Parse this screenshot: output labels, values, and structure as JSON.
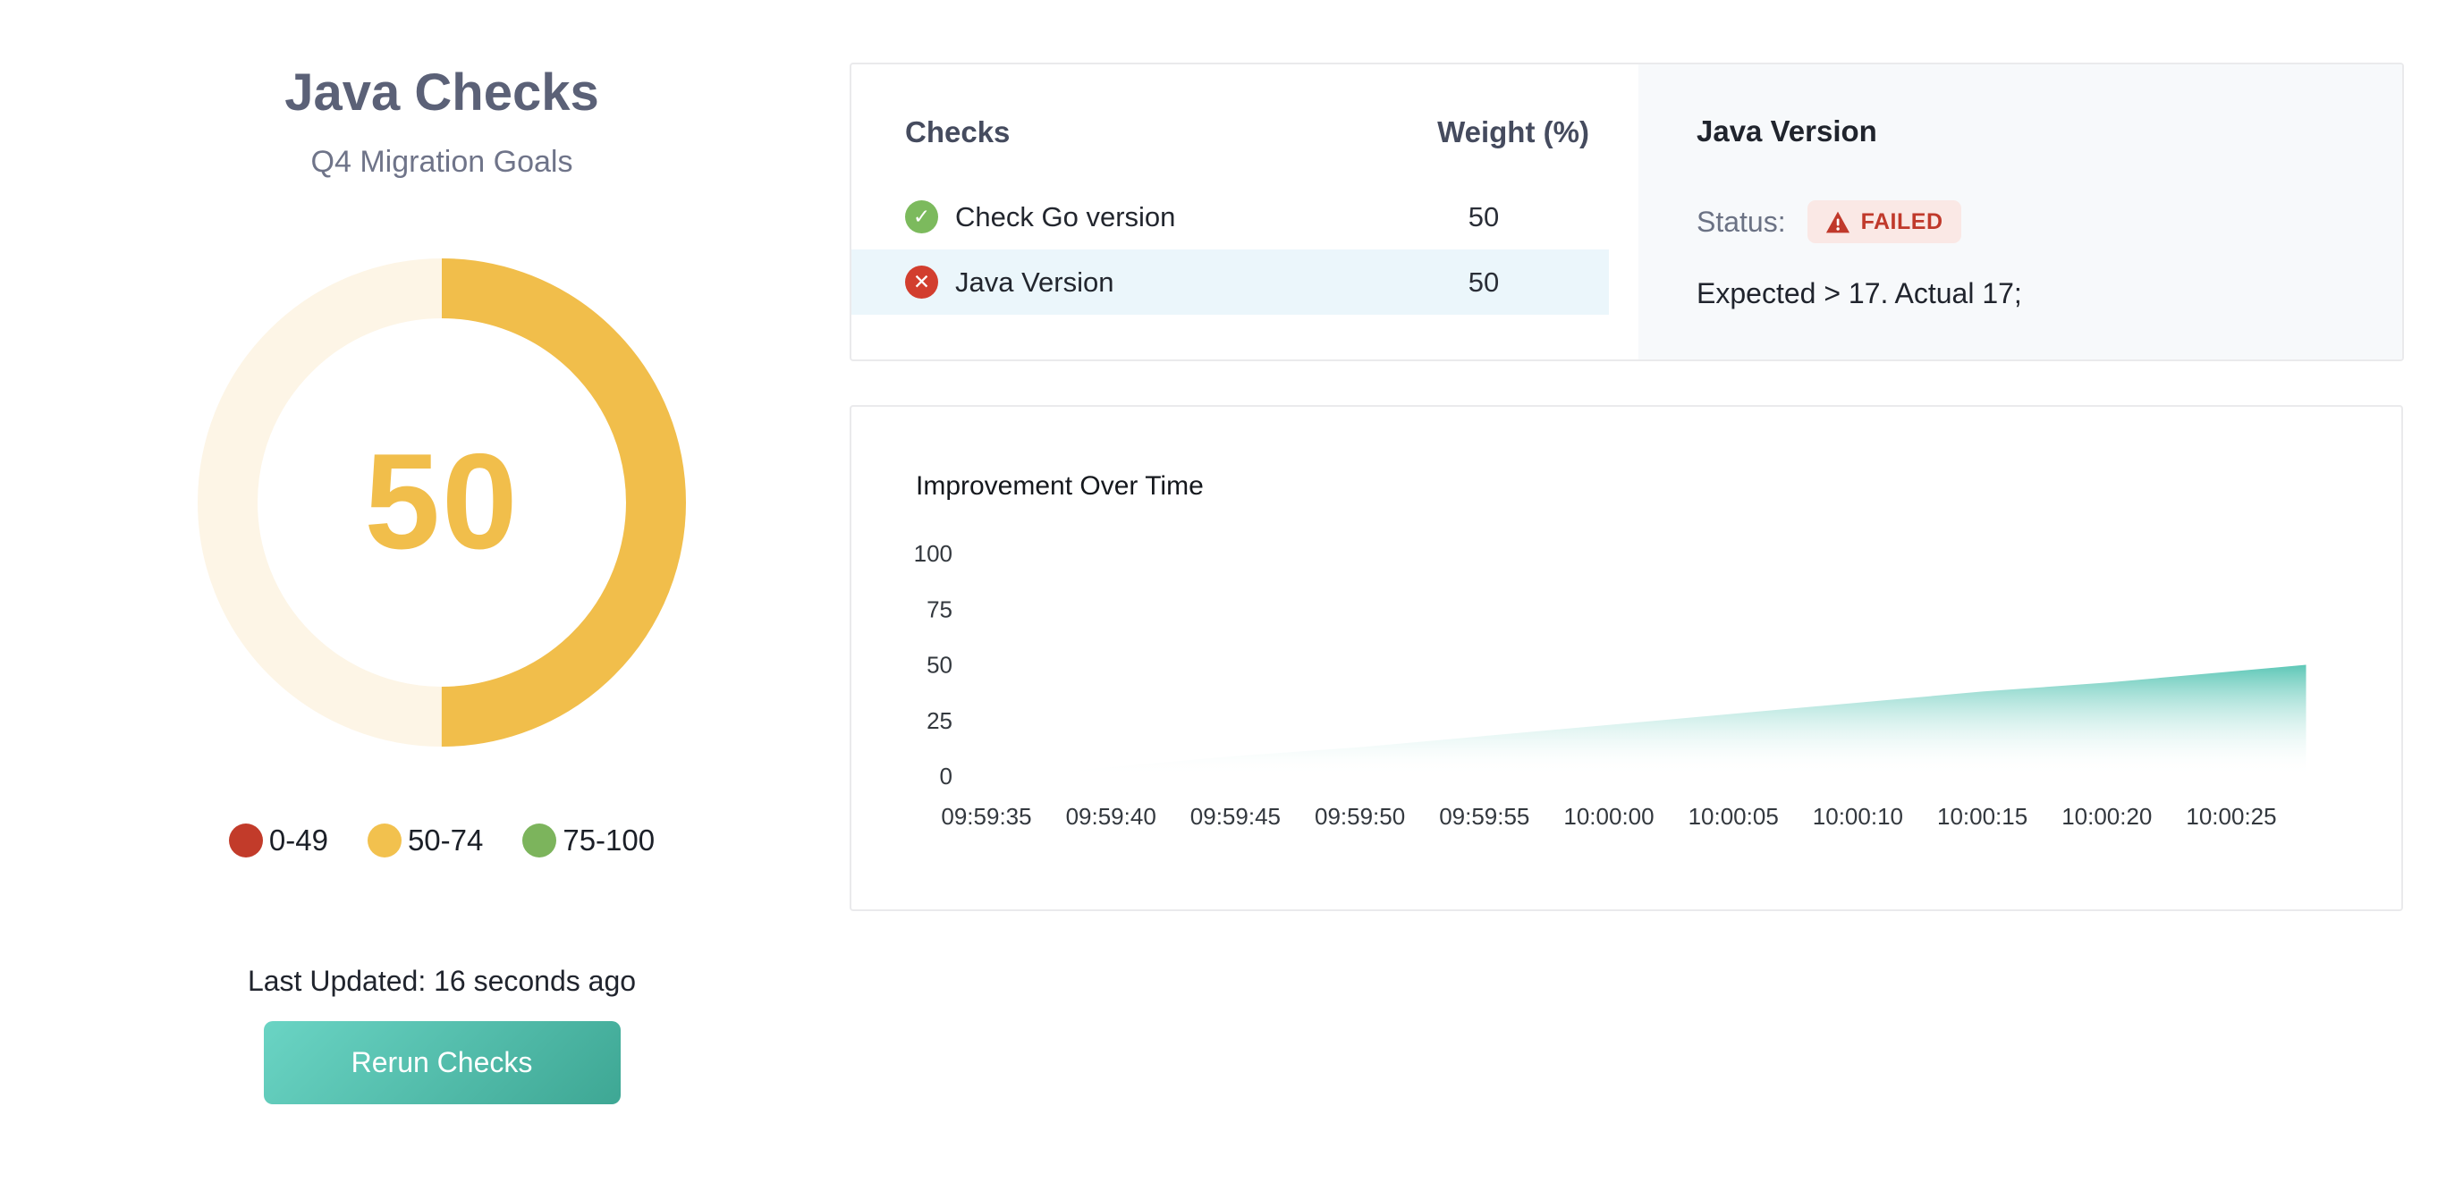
{
  "page": {
    "title": "Java Checks",
    "subtitle": "Q4 Migration Goals"
  },
  "gauge": {
    "value": 50,
    "max": 100,
    "value_color": "#F1BE4B",
    "track_color": "#FDF5E6",
    "ranges": [
      {
        "label": "0-49",
        "color": "#C23B2A"
      },
      {
        "label": "50-74",
        "color": "#F2C14E"
      },
      {
        "label": "75-100",
        "color": "#7CB45C"
      }
    ]
  },
  "last_updated": "Last Updated: 16 seconds ago",
  "rerun_button": {
    "label": "Rerun Checks"
  },
  "checks_panel": {
    "header": {
      "checks": "Checks",
      "weight": "Weight (%)"
    },
    "rows": [
      {
        "name": "Check Go version",
        "weight": "50",
        "status": "passed",
        "selected": false
      },
      {
        "name": "Java Version",
        "weight": "50",
        "status": "failed",
        "selected": true
      }
    ]
  },
  "detail_panel": {
    "title": "Java Version",
    "status_label": "Status:",
    "status_badge": "FAILED",
    "badge_color": "#C0392B",
    "badge_bg": "#FAE8E5",
    "message": "Expected > 17. Actual 17;"
  },
  "chart_data": {
    "type": "area",
    "title": "Improvement Over Time",
    "xlabel": "",
    "ylabel": "",
    "ylim": [
      0,
      100
    ],
    "y_ticks": [
      0,
      25,
      50,
      75,
      100
    ],
    "x_ticks": [
      "09:59:35",
      "09:59:40",
      "09:59:45",
      "09:59:50",
      "09:59:55",
      "10:00:00",
      "10:00:05",
      "10:00:10",
      "10:00:15",
      "10:00:20",
      "10:00:25"
    ],
    "points": [
      {
        "x": "09:59:36",
        "y": 0
      },
      {
        "x": "09:59:40",
        "y": 4
      },
      {
        "x": "09:59:45",
        "y": 9
      },
      {
        "x": "09:59:50",
        "y": 13
      },
      {
        "x": "09:59:55",
        "y": 18
      },
      {
        "x": "10:00:00",
        "y": 23
      },
      {
        "x": "10:00:05",
        "y": 28
      },
      {
        "x": "10:00:10",
        "y": 33
      },
      {
        "x": "10:00:15",
        "y": 38
      },
      {
        "x": "10:00:20",
        "y": 42
      },
      {
        "x": "10:00:25",
        "y": 47
      },
      {
        "x": "10:00:28",
        "y": 50
      }
    ],
    "grid": false,
    "legend": "none",
    "area_color_top": "#55C4B3",
    "area_color_bottom": "#FFFFFF"
  }
}
